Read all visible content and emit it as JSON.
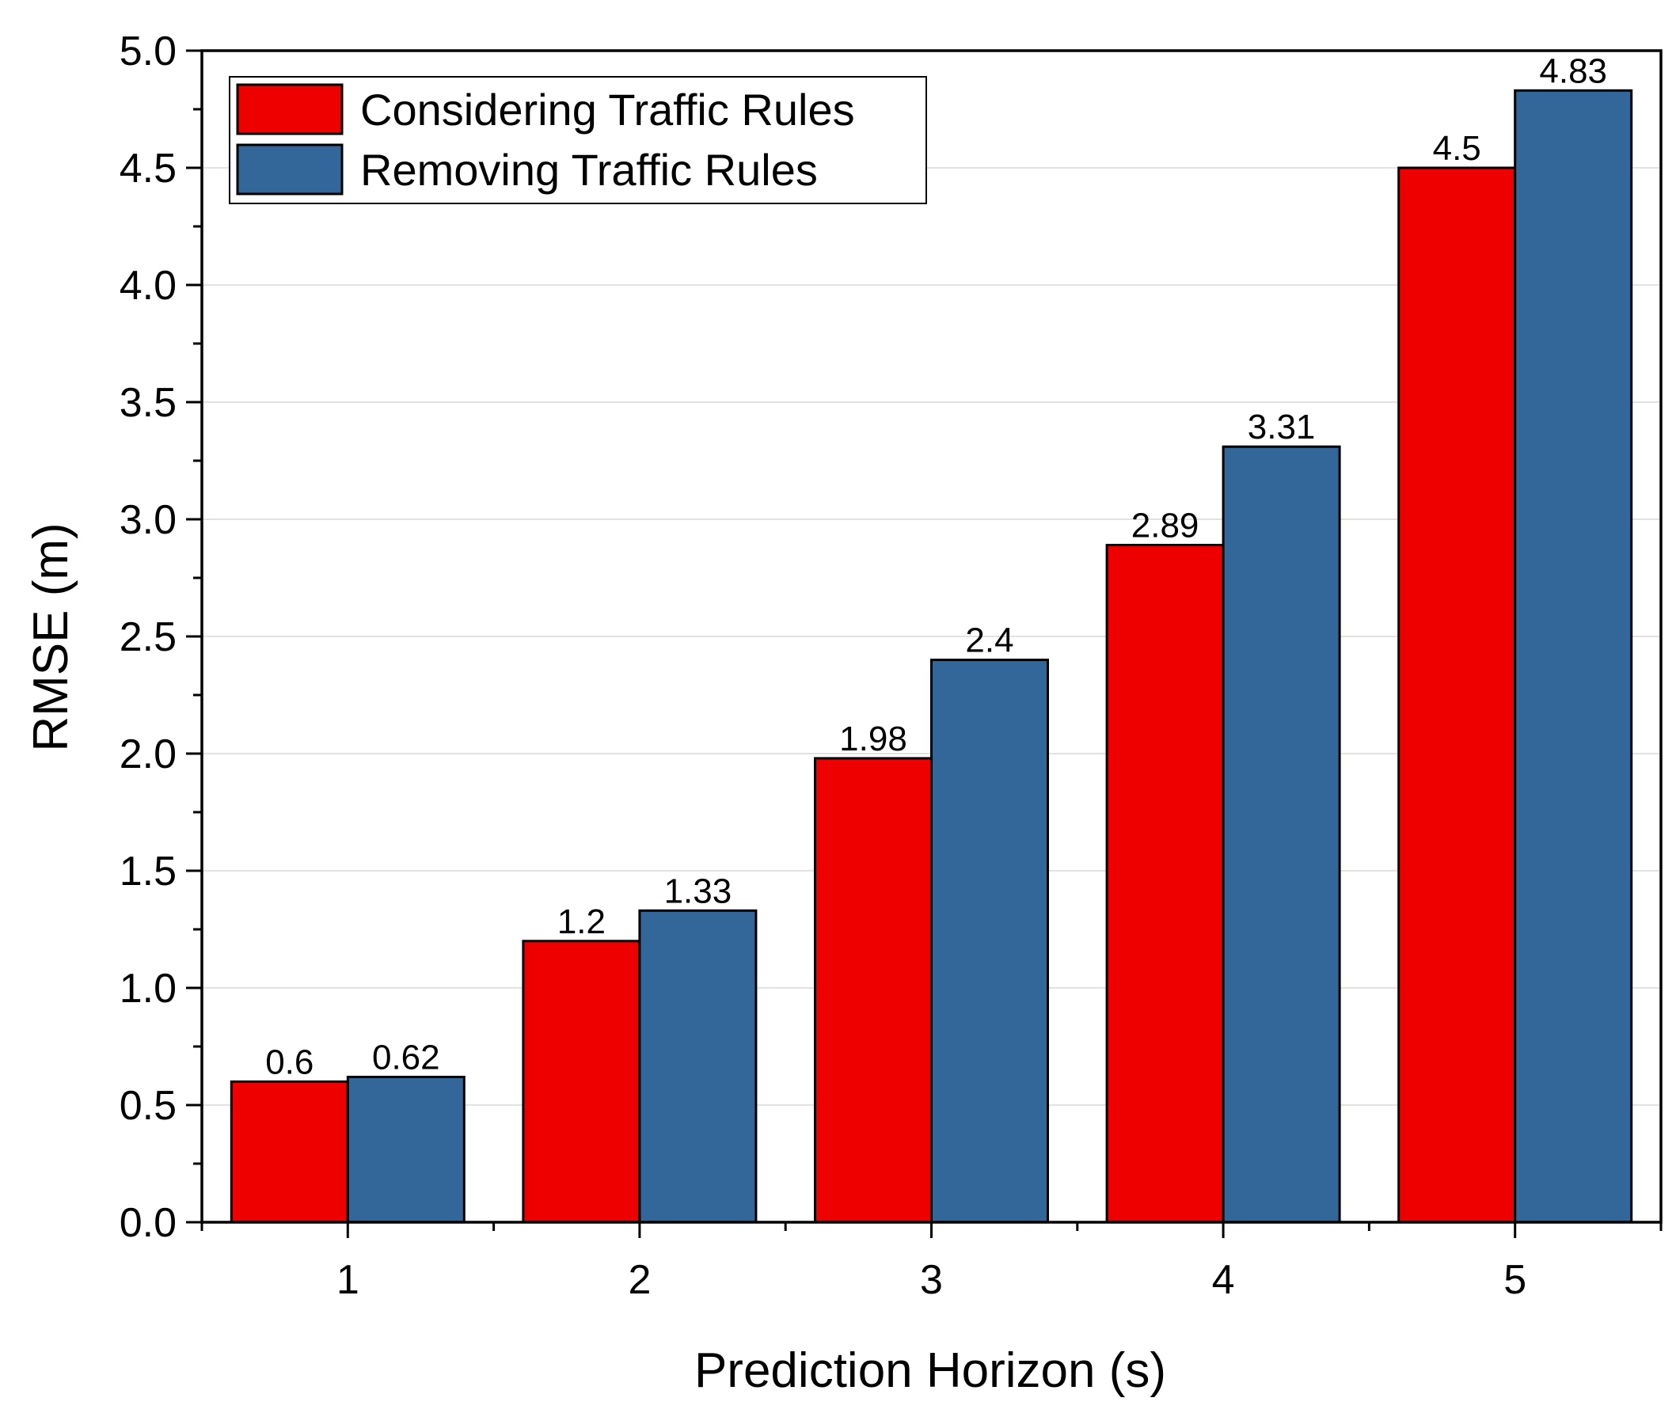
{
  "chart_data": {
    "type": "bar",
    "title": "",
    "xlabel": "Prediction Horizon (s)",
    "ylabel": "RMSE (m)",
    "categories": [
      "1",
      "2",
      "3",
      "4",
      "5"
    ],
    "ylim": [
      0,
      5.0
    ],
    "yticks": [
      "0.0",
      "0.5",
      "1.0",
      "1.5",
      "2.0",
      "2.5",
      "3.0",
      "3.5",
      "4.0",
      "4.5",
      "5.0"
    ],
    "grid": true,
    "legend_position": "top-left",
    "series": [
      {
        "name": "Considering Traffic Rules",
        "color": "#ee0000",
        "values": [
          0.6,
          1.2,
          1.98,
          2.89,
          4.5
        ],
        "labels": [
          "0.6",
          "1.2",
          "1.98",
          "2.89",
          "4.5"
        ]
      },
      {
        "name": "Removing Traffic Rules",
        "color": "#336699",
        "values": [
          0.62,
          1.33,
          2.4,
          3.31,
          4.83
        ],
        "labels": [
          "0.62",
          "1.33",
          "2.4",
          "3.31",
          "4.83"
        ]
      }
    ]
  }
}
